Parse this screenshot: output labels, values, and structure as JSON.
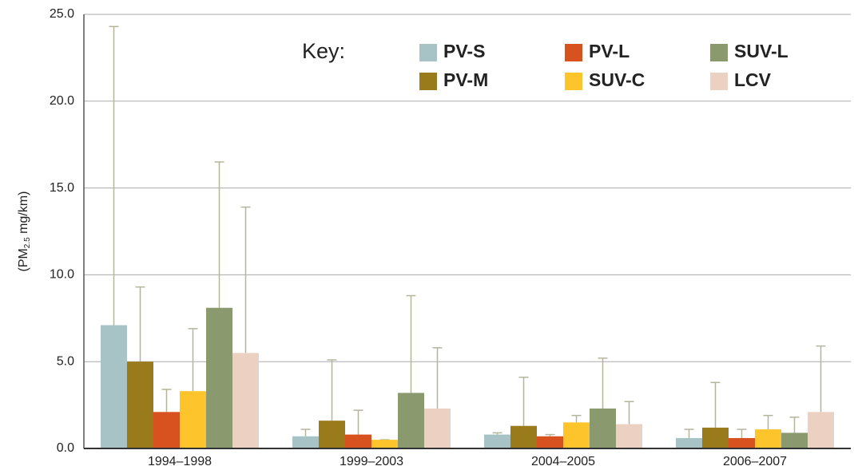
{
  "chart_data": {
    "type": "bar",
    "ylabel_parts": [
      "(PM",
      "2.5",
      " mg/km)"
    ],
    "legend_title": "Key:",
    "categories": [
      "1994–1998",
      "1999–2003",
      "2004–2005",
      "2006–2007"
    ],
    "series": [
      {
        "name": "PV-S",
        "color": "#a8c3c6",
        "values": [
          7.1,
          0.7,
          0.8,
          0.6
        ],
        "errors": [
          17.2,
          0.4,
          0.1,
          0.5
        ]
      },
      {
        "name": "PV-M",
        "color": "#9a7b1b",
        "values": [
          5.0,
          1.6,
          1.3,
          1.2
        ],
        "errors": [
          4.3,
          3.5,
          2.8,
          2.6
        ]
      },
      {
        "name": "PV-L",
        "color": "#d8521f",
        "values": [
          2.1,
          0.8,
          0.7,
          0.6
        ],
        "errors": [
          1.3,
          1.4,
          0.1,
          0.5
        ]
      },
      {
        "name": "SUV-C",
        "color": "#fdc52b",
        "values": [
          3.3,
          0.5,
          1.5,
          1.1
        ],
        "errors": [
          3.6,
          0.0,
          0.4,
          0.8
        ]
      },
      {
        "name": "SUV-L",
        "color": "#8a9a6e",
        "values": [
          8.1,
          3.2,
          2.3,
          0.9
        ],
        "errors": [
          8.4,
          5.6,
          2.9,
          0.9
        ]
      },
      {
        "name": "LCV",
        "color": "#ecd0c1",
        "values": [
          5.5,
          2.3,
          1.4,
          2.1
        ],
        "errors": [
          8.4,
          3.5,
          1.3,
          3.8
        ]
      }
    ],
    "ylim": [
      0,
      25
    ],
    "yticks": [
      {
        "value": 0,
        "label": "0.0"
      },
      {
        "value": 5,
        "label": "5.0"
      },
      {
        "value": 10,
        "label": "10.0"
      },
      {
        "value": 15,
        "label": "15.0"
      },
      {
        "value": 20,
        "label": "20.0"
      },
      {
        "value": 25,
        "label": "25.0"
      }
    ],
    "grid": true,
    "error_color": "#b5b59c"
  }
}
